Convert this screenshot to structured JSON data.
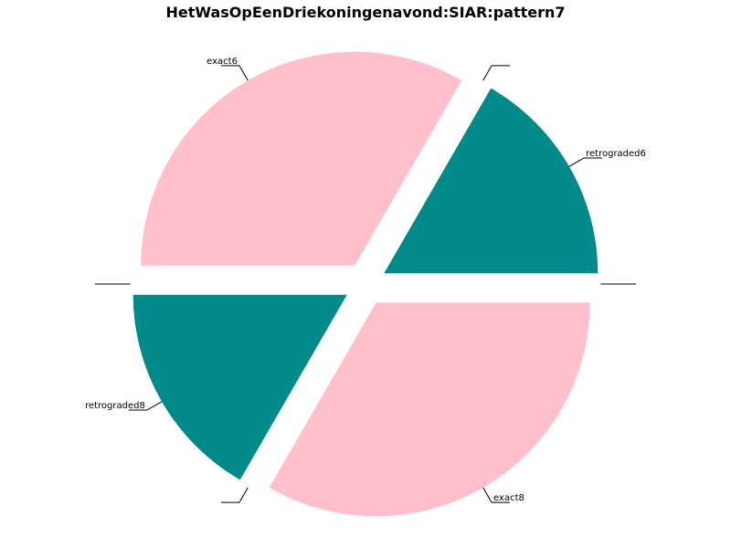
{
  "chart_data": {
    "type": "pie",
    "title": "HetWasOpEenDriekoningenavond:SIAR:pattern7",
    "slices": [
      {
        "label": "retrograded6",
        "value": 1,
        "color": "#008B8A"
      },
      {
        "label": "",
        "value": 0,
        "color": "#000000"
      },
      {
        "label": "exact6",
        "value": 2,
        "color": "#FFC0CB"
      },
      {
        "label": "",
        "value": 0,
        "color": "#000000"
      },
      {
        "label": "retrograded8",
        "value": 1,
        "color": "#008B8A"
      },
      {
        "label": "",
        "value": 0,
        "color": "#000000"
      },
      {
        "label": "exact8",
        "value": 2,
        "color": "#FFC0CB"
      },
      {
        "label": "",
        "value": 0,
        "color": "#000000"
      }
    ],
    "exploded": true,
    "legend": "none"
  }
}
